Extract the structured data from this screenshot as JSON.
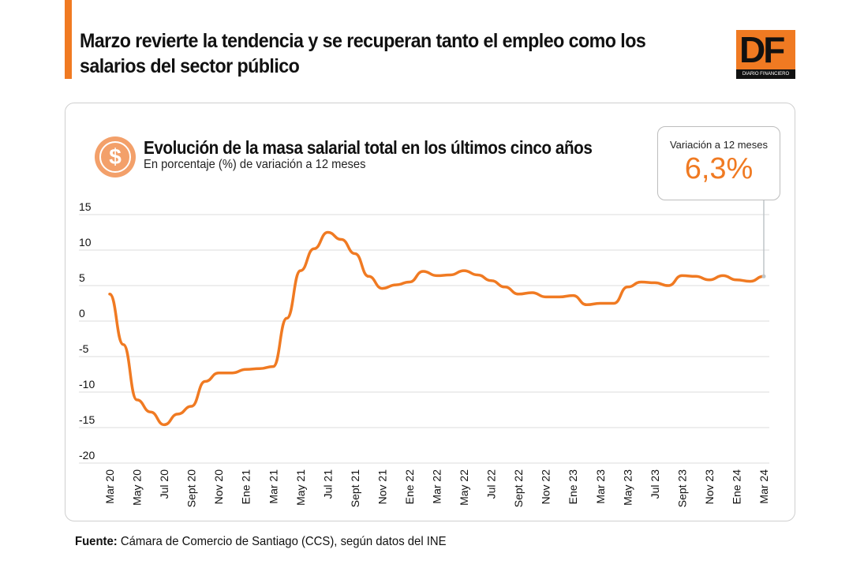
{
  "header": {
    "headline": "Marzo revierte la tendencia y se recuperan tanto el empleo como los salarios del sector público",
    "logo_text": "DF",
    "logo_subtext": "DIARIO FINANCIERO",
    "brand_color": "#f07a22"
  },
  "chart_header": {
    "icon": "dollar-coin-icon",
    "title": "Evolución de la masa salarial total en los últimos cinco años",
    "subtitle": "En porcentaje (%) de variación a 12 meses"
  },
  "callout": {
    "label": "Variación a 12 meses",
    "value": "6,3%"
  },
  "footer": {
    "source_label": "Fuente:",
    "source_text": " Cámara de Comercio de Santiago (CCS), según datos del INE"
  },
  "chart_data": {
    "type": "line",
    "title": "Evolución de la masa salarial total en los últimos cinco años",
    "ylabel": "",
    "xlabel": "",
    "ylim": [
      -20,
      15
    ],
    "yticks": [
      15,
      10,
      5,
      0,
      -5,
      -10,
      -15,
      -20
    ],
    "grid": true,
    "line_color": "#f07a22",
    "x_tick_labels": [
      "Mar 20",
      "May 20",
      "Jul 20",
      "Sept 20",
      "Nov 20",
      "Ene 21",
      "Mar 21",
      "May 21",
      "Jul 21",
      "Sept 21",
      "Nov 21",
      "Ene 22",
      "Mar 22",
      "May 22",
      "Jul 22",
      "Sept 22",
      "Nov 22",
      "Ene 23",
      "Mar 23",
      "May 23",
      "Jul 23",
      "Sept 23",
      "Nov 23",
      "Ene 24",
      "Mar 24"
    ],
    "x_start": "Mar 20",
    "x_end": "Mar 24",
    "frequency": "monthly",
    "values": [
      3.8,
      -3.3,
      -11.1,
      -12.8,
      -14.6,
      -13.1,
      -12.0,
      -8.5,
      -7.3,
      -7.3,
      -6.8,
      -6.7,
      -6.4,
      0.4,
      7.1,
      10.2,
      12.5,
      11.5,
      9.5,
      6.3,
      4.6,
      5.1,
      5.5,
      7.0,
      6.4,
      6.5,
      7.1,
      6.5,
      5.7,
      4.8,
      3.8,
      4.0,
      3.4,
      3.4,
      3.6,
      2.3,
      2.5,
      2.5,
      4.8,
      5.5,
      5.4,
      5.0,
      6.4,
      6.3,
      5.8,
      6.4,
      5.8,
      5.6,
      6.3
    ]
  }
}
